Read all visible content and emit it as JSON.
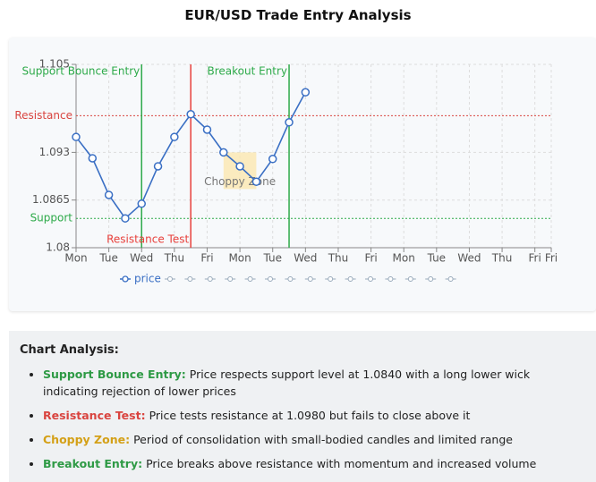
{
  "chart_data": {
    "type": "line",
    "title": "EUR/USD Trade Entry Analysis",
    "x": [
      0,
      0.5,
      1,
      1.5,
      2,
      2.5,
      3,
      3.5,
      4,
      4.5,
      5,
      5.5,
      6,
      6.5,
      7
    ],
    "series": [
      {
        "name": "price",
        "color": "#3a6fc4",
        "values": [
          1.0951,
          1.0922,
          1.0872,
          1.084,
          1.086,
          1.0911,
          1.0951,
          1.0982,
          1.0961,
          1.093,
          1.0911,
          1.089,
          1.0921,
          1.0971,
          1.1012
        ]
      }
    ],
    "xlim": [
      0,
      14.5
    ],
    "xticks": [
      {
        "value": 0,
        "label": "Mon"
      },
      {
        "value": 1,
        "label": "Tue"
      },
      {
        "value": 2,
        "label": "Wed"
      },
      {
        "value": 3,
        "label": "Thu"
      },
      {
        "value": 4,
        "label": "Fri"
      },
      {
        "value": 5,
        "label": "Mon"
      },
      {
        "value": 6,
        "label": "Tue"
      },
      {
        "value": 7,
        "label": "Wed"
      },
      {
        "value": 8,
        "label": "Thu"
      },
      {
        "value": 9,
        "label": "Fri"
      },
      {
        "value": 10,
        "label": "Mon"
      },
      {
        "value": 11,
        "label": "Tue"
      },
      {
        "value": 12,
        "label": "Wed"
      },
      {
        "value": 13,
        "label": "Thu"
      },
      {
        "value": 14,
        "label": "Fri"
      },
      {
        "value": 14.5,
        "label": "Fri"
      }
    ],
    "ylim": [
      1.08,
      1.105
    ],
    "yticks": [
      1.08,
      1.0865,
      1.093,
      1.105
    ],
    "grid": true,
    "hlines": [
      {
        "y": 1.098,
        "label": "Resistance",
        "color": "#d9443f"
      },
      {
        "y": 1.084,
        "label": "Support",
        "color": "#2eaa4a"
      }
    ],
    "vlines": [
      {
        "x": 2,
        "label": "Support Bounce Entry",
        "color": "#2eaa4a",
        "pos": "top"
      },
      {
        "x": 3.5,
        "label": "Resistance Test",
        "color": "#e8413c",
        "pos": "bottom"
      },
      {
        "x": 6.5,
        "label": "Breakout Entry",
        "color": "#2eaa4a",
        "pos": "top"
      }
    ],
    "zone": {
      "x": [
        4.5,
        5.5
      ],
      "y": [
        1.088,
        1.093
      ],
      "label": "Choppy Zone",
      "color": "#fbe7b0"
    }
  },
  "analysis": {
    "title": "Chart Analysis:",
    "items": [
      {
        "label": "Support Bounce Entry:",
        "text": "Price respects support level at 1.0840 with a long lower wick indicating rejection of lower prices",
        "color": "#2e9a45"
      },
      {
        "label": "Resistance Test:",
        "text": "Price tests resistance at 1.0980 but fails to close above it",
        "color": "#d9443f"
      },
      {
        "label": "Choppy Zone:",
        "text": "Period of consolidation with small-bodied candles and limited range",
        "color": "#d4a017"
      },
      {
        "label": "Breakout Entry:",
        "text": "Price breaks above resistance with momentum and increased volume",
        "color": "#2e9a45"
      }
    ]
  }
}
